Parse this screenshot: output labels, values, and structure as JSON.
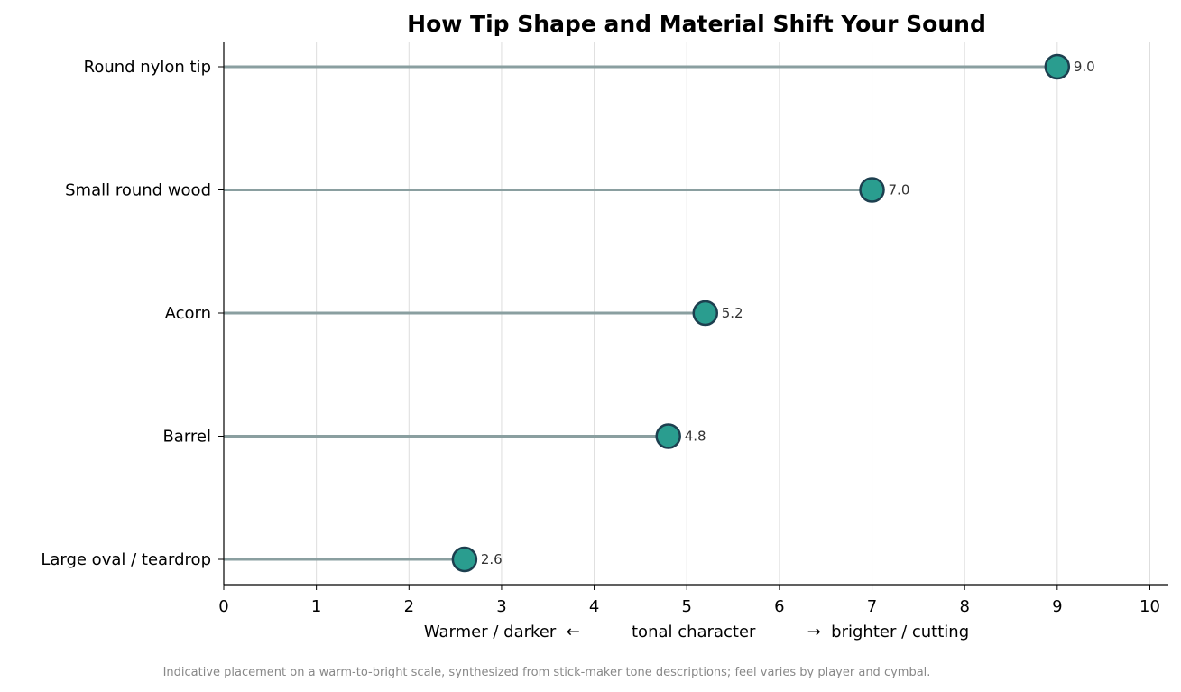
{
  "chart_data": {
    "type": "lollipop",
    "title": "How Tip Shape and Material Shift Your Sound",
    "categories": [
      "Round nylon tip",
      "Small round wood",
      "Acorn",
      "Barrel",
      "Large oval / teardrop"
    ],
    "values": [
      9.0,
      7.0,
      5.2,
      4.8,
      2.6
    ],
    "value_labels": [
      "9.0",
      "7.0",
      "5.2",
      "4.8",
      "2.6"
    ],
    "xlabel": "Warmer / darker  ←          tonal character          →  brighter / cutting",
    "xlim": [
      0,
      10.2
    ],
    "xticks": [
      0,
      1,
      2,
      3,
      4,
      5,
      6,
      7,
      8,
      9,
      10
    ],
    "grid": "vertical",
    "caption": "Indicative placement on a warm-to-bright scale, synthesized from stick-maker tone descriptions; feel varies by player and cymbal.",
    "colors": {
      "marker_fill": "#2a9d8f",
      "marker_edge": "#1d3f4f",
      "stem": "#8a9fa0",
      "grid": "#dddddd",
      "axis": "#000000"
    }
  }
}
